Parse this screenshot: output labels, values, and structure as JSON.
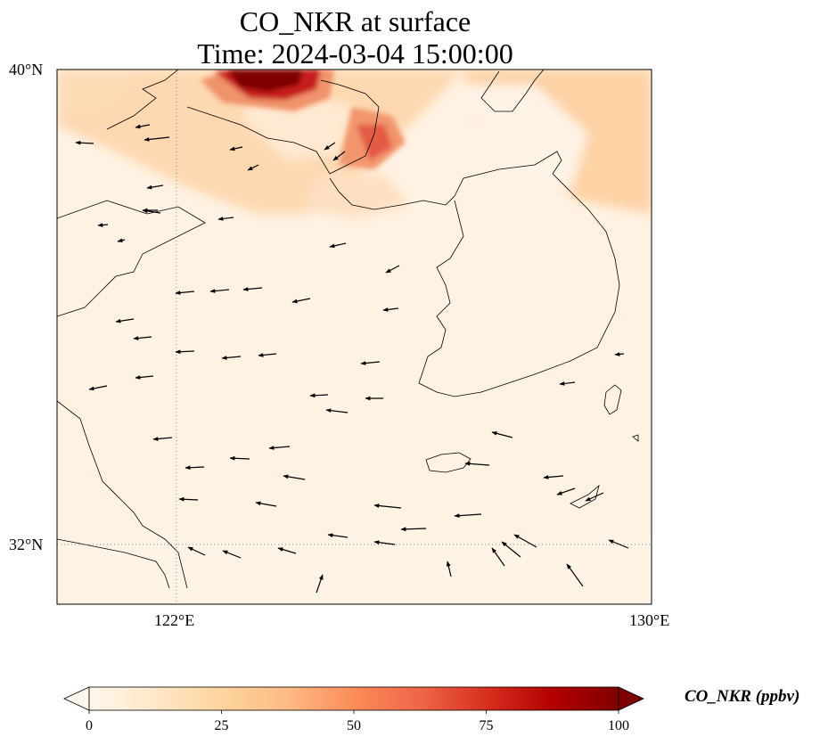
{
  "title_line1": "CO_NKR at surface",
  "title_line2": "Time: 2024-03-04 15:00:00",
  "axes": {
    "lat_labels": [
      "40°N",
      "32°N"
    ],
    "lon_labels": [
      "122°E",
      "130°E"
    ],
    "extent": {
      "lon": [
        120,
        130
      ],
      "lat": [
        31,
        40
      ]
    },
    "gridlines": {
      "lon": [
        122
      ],
      "lat": [
        32
      ],
      "style": "dotted"
    }
  },
  "colorbar": {
    "label": "CO_NKR (ppbv)",
    "ticks": [
      "0",
      "25",
      "50",
      "75",
      "100"
    ],
    "range": [
      0,
      100
    ],
    "extend": "both",
    "colormap": "OrRd",
    "colors": [
      "#fff7ec",
      "#fee8c8",
      "#fdd49e",
      "#fdbb84",
      "#fc8d59",
      "#ef6548",
      "#d7301f",
      "#b30000",
      "#7f0000"
    ]
  },
  "chart_data": {
    "type": "heatmap",
    "variable": "CO_NKR",
    "units": "ppbv",
    "level": "surface",
    "time": "2024-03-04 15:00:00",
    "plumes": [
      {
        "region": "north of 39.3°N, 122.5–124.5°E",
        "value_ppbv": 100
      },
      {
        "region": "38–38.8°N, 123.3–124.1°E",
        "value_ppbv": 75
      },
      {
        "region": "36.5–39°N, 121–126°E",
        "value_ppbv": 28
      },
      {
        "region": "37–40°N, 126.5–129.5°E",
        "value_ppbv": 25
      },
      {
        "region": "sea 31–36°N, 120–130°E",
        "value_ppbv": 5
      }
    ],
    "wind_vectors": "surface wind arrows, predominantly blowing westward over the sea"
  }
}
